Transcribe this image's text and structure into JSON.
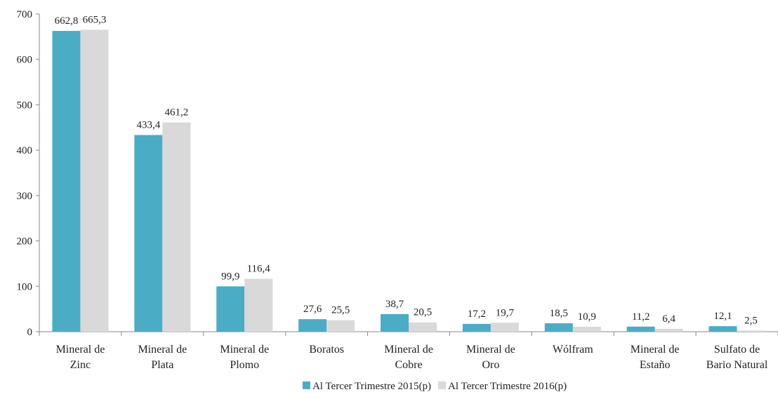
{
  "chart_data": {
    "type": "bar",
    "categories": [
      [
        "Mineral de",
        "Zinc"
      ],
      [
        "Mineral de",
        "Plata"
      ],
      [
        "Mineral de",
        "Plomo"
      ],
      [
        "Boratos"
      ],
      [
        "Mineral de",
        "Cobre"
      ],
      [
        "Mineral de",
        "Oro"
      ],
      [
        "Wólfram"
      ],
      [
        "Mineral de",
        "Estaño"
      ],
      [
        "Sulfato de",
        "Bario Natural"
      ]
    ],
    "series": [
      {
        "name": "Al Tercer Trimestre 2015(p)",
        "color": "#4bacc6",
        "values": [
          662.8,
          433.4,
          99.9,
          27.6,
          38.7,
          17.2,
          18.5,
          11.2,
          12.1
        ],
        "labels": [
          "662,8",
          "433,4",
          "99,9",
          "27,6",
          "38,7",
          "17,2",
          "18,5",
          "11,2",
          "12,1"
        ]
      },
      {
        "name": "Al Tercer Trimestre 2016(p)",
        "color": "#d9d9d9",
        "values": [
          665.3,
          461.2,
          116.4,
          25.5,
          20.5,
          19.7,
          10.9,
          6.4,
          2.5
        ],
        "labels": [
          "665,3",
          "461,2",
          "116,4",
          "25,5",
          "20,5",
          "19,7",
          "10,9",
          "6,4",
          "2,5"
        ]
      }
    ],
    "yticks": [
      0,
      100,
      200,
      300,
      400,
      500,
      600,
      700
    ],
    "ylim": [
      0,
      700
    ],
    "grid": false,
    "legend_position": "bottom"
  }
}
